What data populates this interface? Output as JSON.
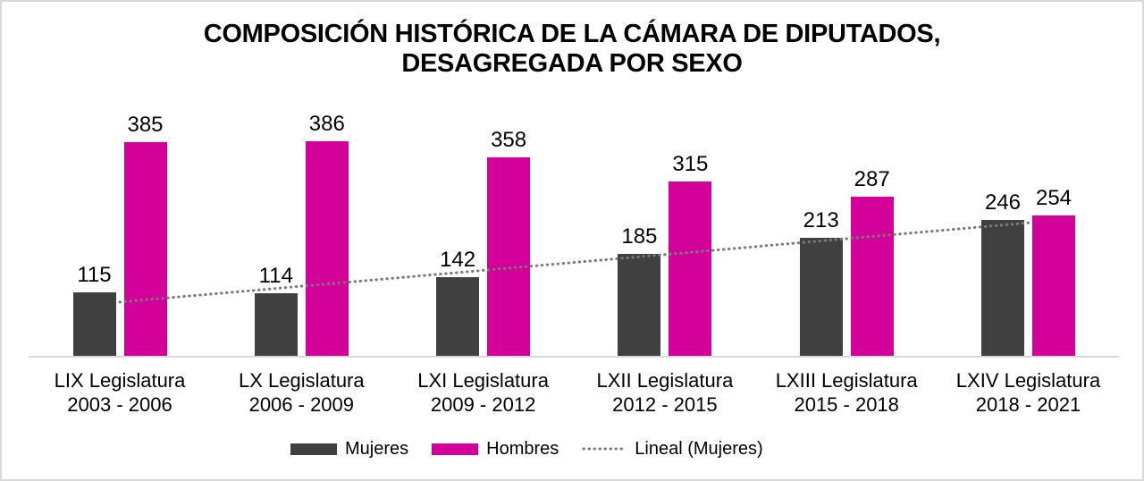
{
  "header": {
    "title_lines": [
      "COMPOSICIÓN HISTÓRICA DE LA CÁMARA DE DIPUTADOS,",
      "DESAGREGADA POR SEXO"
    ]
  },
  "chart_data": {
    "type": "bar",
    "title": "COMPOSICIÓN HISTÓRICA DE LA CÁMARA DE DIPUTADOS, DESAGREGADA POR SEXO",
    "categories": [
      {
        "name": "LIX Legislatura",
        "years": "2003 - 2006"
      },
      {
        "name": "LX Legislatura",
        "years": "2006 - 2009"
      },
      {
        "name": "LXI Legislatura",
        "years": "2009 - 2012"
      },
      {
        "name": "LXII Legislatura",
        "years": "2012 - 2015"
      },
      {
        "name": "LXIII Legislatura",
        "years": "2015 - 2018"
      },
      {
        "name": "LXIV Legislatura",
        "years": "2018 - 2021"
      }
    ],
    "series": [
      {
        "name": "Mujeres",
        "color": "#404040",
        "values": [
          115,
          114,
          142,
          185,
          213,
          246
        ]
      },
      {
        "name": "Hombres",
        "color": "#d4009a",
        "values": [
          385,
          386,
          358,
          315,
          287,
          254
        ]
      }
    ],
    "trendline": {
      "name": "Lineal (Mujeres)",
      "style": "dotted",
      "color": "#7a7a7a"
    },
    "data_labels": true,
    "xlabel": "",
    "ylabel": "",
    "ylim": [
      0,
      400
    ],
    "gridlines": false,
    "legend_position": "bottom",
    "axis_line_color": "#d9d9d9"
  }
}
